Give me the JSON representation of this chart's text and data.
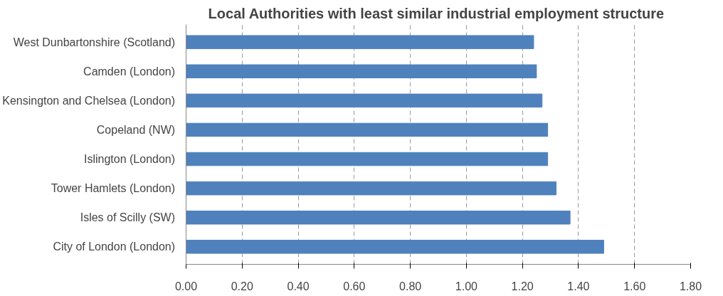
{
  "chart_data": {
    "type": "bar",
    "orientation": "horizontal",
    "title": "Local Authorities with  least similar industrial employment structure",
    "categories": [
      "West Dunbartonshire  (Scotland)",
      "Camden  (London)",
      "Kensington and Chelsea  (London)",
      "Copeland  (NW)",
      "Islington  (London)",
      "Tower Hamlets  (London)",
      "Isles of Scilly  (SW)",
      "City of London  (London)"
    ],
    "values": [
      1.24,
      1.25,
      1.27,
      1.29,
      1.29,
      1.32,
      1.37,
      1.49
    ],
    "color": "#4f81bd",
    "xlim": [
      0,
      1.8
    ],
    "xticks": [
      {
        "value": 0,
        "label": "0.00"
      },
      {
        "value": 0.2,
        "label": "0.20"
      },
      {
        "value": 0.4,
        "label": "0.40"
      },
      {
        "value": 0.6,
        "label": "0.60"
      },
      {
        "value": 0.8,
        "label": "0.80"
      },
      {
        "value": 1.0,
        "label": "1.00"
      },
      {
        "value": 1.2,
        "label": "1.20"
      },
      {
        "value": 1.4,
        "label": "1.40"
      },
      {
        "value": 1.6,
        "label": "1.60"
      },
      {
        "value": 1.8,
        "label": "1.80"
      }
    ],
    "grid": "x"
  }
}
